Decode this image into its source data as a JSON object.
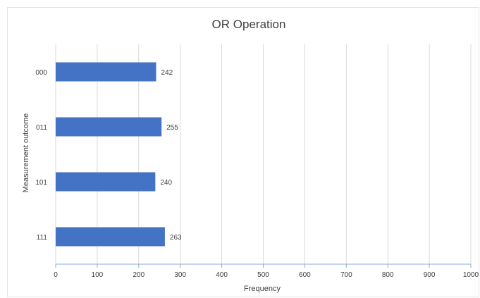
{
  "chart_data": {
    "type": "bar",
    "orientation": "horizontal",
    "title": "OR Operation",
    "xlabel": "Frequency",
    "ylabel": "Measurement outcome",
    "categories": [
      "000",
      "011",
      "101",
      "111"
    ],
    "values": [
      242,
      255,
      240,
      263
    ],
    "data_labels": [
      "242",
      "255",
      "240",
      "263"
    ],
    "xlim": [
      0,
      1000
    ],
    "x_ticks": [
      "0",
      "100",
      "200",
      "300",
      "400",
      "500",
      "600",
      "700",
      "800",
      "900",
      "1000"
    ],
    "grid": "vertical",
    "legend": "none",
    "bar_color": "#4472c4",
    "axis_color": "#8eaadb",
    "grid_color": "#d9d9d9"
  }
}
